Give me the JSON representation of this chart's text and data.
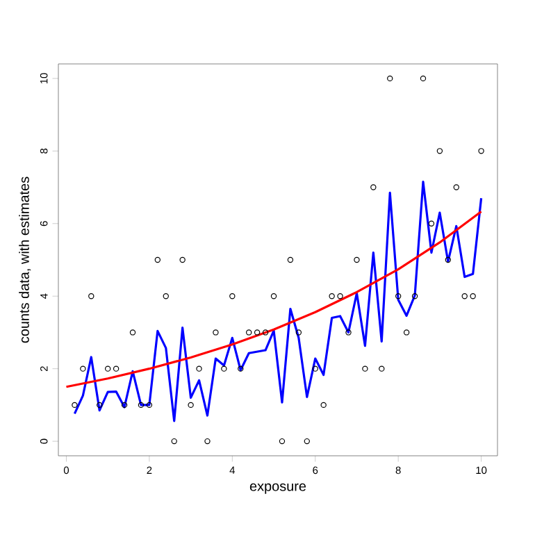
{
  "chart_data": {
    "type": "scatter",
    "xlabel": "exposure",
    "ylabel": "counts data, with estimates",
    "xlim": [
      -0.192,
      10.392
    ],
    "ylim": [
      -0.4,
      10.4
    ],
    "xticks": [
      0,
      2,
      4,
      6,
      8,
      10
    ],
    "yticks": [
      0,
      2,
      4,
      6,
      8,
      10
    ],
    "grid": false,
    "series": [
      {
        "marker": "circle",
        "color": "#000000",
        "x": [
          0.2,
          0.4,
          0.6,
          0.8,
          1.0,
          1.2,
          1.4,
          1.6,
          1.8,
          2.0,
          2.2,
          2.4,
          2.6,
          2.8,
          3.0,
          3.2,
          3.4,
          3.6,
          3.8,
          4.0,
          4.2,
          4.4,
          4.6,
          4.8,
          5.0,
          5.2,
          5.4,
          5.6,
          5.8,
          6.0,
          6.2,
          6.4,
          6.6,
          6.8,
          7.0,
          7.2,
          7.4,
          7.6,
          7.8,
          8.0,
          8.2,
          8.4,
          8.6,
          8.8,
          9.0,
          9.2,
          9.4,
          9.6,
          9.8,
          10.0
        ],
        "values": [
          1,
          2,
          4,
          1,
          2,
          2,
          1,
          3,
          1,
          1,
          5,
          4,
          0,
          5,
          1,
          2,
          0,
          3,
          2,
          4,
          2,
          3,
          3,
          3,
          4,
          0,
          5,
          3,
          0,
          2,
          1,
          4,
          4,
          3,
          5,
          2,
          7,
          2,
          10,
          4,
          3,
          4,
          10,
          6,
          8,
          5,
          7,
          4,
          4,
          8
        ]
      },
      {
        "type": "line",
        "marker": "none",
        "line_style": "solid",
        "color": "#0000ff",
        "x": [
          0.2,
          0.4,
          0.6,
          0.8,
          1.0,
          1.2,
          1.4,
          1.6,
          1.8,
          2.0,
          2.2,
          2.4,
          2.6,
          2.8,
          3.0,
          3.2,
          3.4,
          3.6,
          3.8,
          4.0,
          4.2,
          4.4,
          4.6,
          4.8,
          5.0,
          5.2,
          5.4,
          5.6,
          5.8,
          6.0,
          6.2,
          6.4,
          6.6,
          6.8,
          7.0,
          7.2,
          7.4,
          7.6,
          7.8,
          8.0,
          8.2,
          8.4,
          8.6,
          8.8,
          9.0,
          9.2,
          9.4,
          9.6,
          9.8,
          10.0
        ],
        "values": [
          0.76,
          1.26,
          2.32,
          0.85,
          1.36,
          1.37,
          0.94,
          1.93,
          1.0,
          1.0,
          3.04,
          2.57,
          0.56,
          3.13,
          1.2,
          1.68,
          0.71,
          2.28,
          2.09,
          2.85,
          1.96,
          2.43,
          2.47,
          2.51,
          3.05,
          1.07,
          3.65,
          2.85,
          1.22,
          2.28,
          1.83,
          3.4,
          3.45,
          3.0,
          4.08,
          2.63,
          5.2,
          2.75,
          6.85,
          3.9,
          3.46,
          4.02,
          7.15,
          5.2,
          6.3,
          4.95,
          5.93,
          4.53,
          4.61,
          6.7
        ]
      },
      {
        "type": "line",
        "marker": "none",
        "line_style": "solid",
        "color": "#ff0000",
        "x": [
          0,
          1,
          2,
          3,
          4,
          5,
          6,
          7,
          8,
          9,
          10
        ],
        "values": [
          1.5,
          1.73,
          2.0,
          2.31,
          2.67,
          3.08,
          3.56,
          4.11,
          4.74,
          5.48,
          6.33
        ]
      }
    ]
  }
}
